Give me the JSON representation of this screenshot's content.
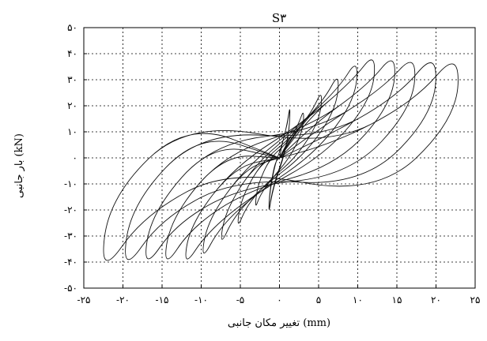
{
  "chart_data": {
    "type": "line",
    "title": "S۳",
    "xlabel": "تغییر مکان جانبی (mm)",
    "ylabel": "بار جانبی (kN)",
    "xlim": [
      -25,
      25
    ],
    "ylim": [
      -50,
      50
    ],
    "grid": true,
    "x_ticks": [
      -25,
      -20,
      -15,
      -10,
      -5,
      0,
      5,
      10,
      15,
      20,
      25
    ],
    "x_tick_labels": [
      "-۲۵",
      "-۲۰",
      "-۱۵",
      "-۱۰",
      "-۵",
      "۰",
      "۵",
      "۱۰",
      "۱۵",
      "۲۰",
      "۲۵"
    ],
    "y_ticks": [
      -50,
      -40,
      -30,
      -20,
      -10,
      0,
      10,
      20,
      30,
      40,
      50
    ],
    "y_tick_labels": [
      "-۵۰",
      "-۴۰",
      "-۳۰",
      "-۲۰",
      "-۱۰",
      "۰",
      "۱۰",
      "۲۰",
      "۳۰",
      "۴۰",
      "۵۰"
    ],
    "series": [
      {
        "x": [
          0.0,
          0.38,
          1.02,
          1.37,
          1.26,
          0.58,
          -0.34,
          -1.0,
          -1.39,
          -1.24,
          -0.55,
          0.28,
          0.98,
          1.37,
          1.28,
          0.62,
          -0.29,
          -0.99,
          -1.39,
          -1.26,
          -0.58,
          0.0
        ],
        "y": [
          0.0,
          6.0,
          13.1,
          20.3,
          10.6,
          0.7,
          -7.3,
          -14.4,
          -21.8,
          -13.1,
          -2.1,
          4.4,
          12.9,
          20.6,
          11.5,
          1.5,
          -6.2,
          -13.7,
          -21.6,
          -12.9,
          -1.7,
          0.0
        ]
      },
      {
        "x": [
          0.0,
          0.89,
          2.38,
          3.16,
          2.96,
          1.21,
          -0.98,
          -2.45,
          -3.16,
          -2.8,
          -1.15,
          0.89,
          2.38,
          3.16,
          2.96,
          1.22,
          -0.98,
          -2.45,
          -3.16,
          -2.8,
          -1.15,
          0.0
        ],
        "y": [
          0.0,
          5.4,
          12.5,
          19.1,
          9.9,
          -0.3,
          -8.0,
          -14.1,
          -20.0,
          -10.3,
          0.2,
          5.4,
          12.5,
          19.1,
          9.9,
          -0.3,
          -8.0,
          -14.1,
          -20.0,
          -10.3,
          0.2,
          0.0
        ]
      },
      {
        "x": [
          0.0,
          1.52,
          4.12,
          5.49,
          5.18,
          2.28,
          -1.53,
          -4.11,
          -5.49,
          -4.91,
          -2.2,
          1.52,
          4.12,
          5.49,
          5.18,
          2.28,
          -1.53,
          -4.11,
          -5.49,
          -4.91,
          -2.2,
          0.0
        ],
        "y": [
          0.0,
          8.0,
          17.5,
          26.6,
          14.7,
          0.7,
          -9.3,
          -18.0,
          -27.8,
          -15.6,
          -1.3,
          8.0,
          17.5,
          26.6,
          14.7,
          0.7,
          -9.3,
          -18.0,
          -27.8,
          -15.6,
          -1.3,
          0.0
        ]
      },
      {
        "x": [
          0.0,
          2.12,
          5.76,
          7.67,
          7.28,
          3.36,
          -2.12,
          -5.75,
          -7.67,
          -6.94,
          -3.22,
          2.12,
          5.76,
          7.67,
          7.28,
          3.36,
          -2.12,
          -5.75,
          -7.67,
          -6.94,
          -3.22,
          0.0
        ],
        "y": [
          0.0,
          10.8,
          22.6,
          33.3,
          18.8,
          1.6,
          -11.1,
          -22.1,
          -34.6,
          -20.5,
          -2.8,
          10.8,
          22.6,
          33.3,
          18.8,
          1.6,
          -11.1,
          -22.1,
          -34.6,
          -20.5,
          -2.8,
          0.0
        ]
      },
      {
        "x": [
          0.0,
          2.76,
          7.57,
          10.08,
          9.66,
          4.65,
          -2.77,
          -7.56,
          -10.08,
          -9.21,
          -4.44,
          2.76,
          7.57,
          10.08,
          9.66,
          4.65,
          -2.77,
          -7.56,
          -10.08,
          -9.21,
          -4.44,
          0.0
        ],
        "y": [
          0.0,
          13.2,
          26.8,
          38.7,
          21.9,
          2.0,
          -13.3,
          -26.3,
          -40.3,
          -24.1,
          -3.9,
          13.2,
          26.8,
          38.7,
          21.9,
          2.0,
          -13.3,
          -26.3,
          -40.3,
          -24.1,
          -3.9,
          0.0
        ]
      },
      {
        "x": [
          0.0,
          3.37,
          9.25,
          12.33,
          11.89,
          5.97,
          -3.37,
          -9.24,
          -12.33,
          -11.38,
          -5.71,
          3.37,
          9.25,
          12.33,
          11.89,
          5.97,
          -3.37,
          -9.24,
          -12.33,
          -11.38,
          -5.71,
          0.0
        ],
        "y": [
          0.0,
          14.3,
          29.4,
          41.2,
          22.9,
          1.5,
          -14.2,
          -28.6,
          -42.7,
          -25.3,
          -3.2,
          14.3,
          29.4,
          41.2,
          22.9,
          1.5,
          -14.2,
          -28.6,
          -42.7,
          -25.3,
          -3.2,
          0.0
        ]
      },
      {
        "x": [
          0.0,
          4.07,
          11.2,
          14.93,
          14.49,
          7.49,
          -4.07,
          -11.19,
          -14.93,
          -13.89,
          -7.17,
          4.07,
          11.2,
          14.93,
          14.49,
          7.49,
          -4.07,
          -11.19,
          -14.93,
          -13.89,
          -7.17,
          0.0
        ],
        "y": [
          0.0,
          12.3,
          27.7,
          41.3,
          21.1,
          -2.7,
          -12.5,
          -26.5,
          -43.4,
          -23.0,
          1.3,
          12.3,
          27.7,
          41.3,
          21.1,
          -2.7,
          -12.5,
          -26.5,
          -43.4,
          -23.0,
          1.3,
          0.0
        ]
      },
      {
        "x": [
          0.0,
          4.76,
          13.13,
          17.5,
          17.06,
          9.0,
          -4.76,
          -13.12,
          -17.5,
          -16.38,
          -8.62,
          4.76,
          13.13,
          17.5,
          17.06,
          9.0,
          -4.76,
          -13.12,
          -17.5,
          -16.38,
          -8.62,
          0.0
        ],
        "y": [
          0.0,
          10.6,
          26.5,
          41.0,
          19.2,
          -6.7,
          -11.0,
          -24.9,
          -44.0,
          -20.8,
          5.7,
          10.6,
          26.5,
          41.0,
          19.2,
          -6.7,
          -11.0,
          -24.9,
          -44.0,
          -20.8,
          5.7,
          0.0
        ]
      },
      {
        "x": [
          0.0,
          5.48,
          15.12,
          20.17,
          19.76,
          10.59,
          -5.48,
          -15.11,
          -20.17,
          -18.97,
          -10.14,
          5.48,
          15.12,
          20.17,
          19.76,
          10.59,
          -5.48,
          -15.11,
          -20.17,
          -18.97,
          -10.14,
          0.0
        ],
        "y": [
          0.0,
          7.3,
          23.6,
          41.8,
          16.6,
          -10.8,
          -7.9,
          -23.3,
          -45.1,
          -17.8,
          10.1,
          7.3,
          23.6,
          41.8,
          16.6,
          -10.8,
          -7.9,
          -23.3,
          -45.1,
          -17.8,
          10.1,
          0.0
        ]
      },
      {
        "x": [
          0.0,
          6.24,
          17.24,
          23.0,
          22.62,
          12.3,
          -6.24,
          -17.23,
          -23.0,
          -21.72,
          -11.78,
          6.24,
          17.24,
          23.0,
          22.62,
          12.3,
          -6.24,
          -17.23,
          -23.0,
          -21.72,
          -11.78,
          0.0
        ],
        "y": [
          0.0,
          4.4,
          21.6,
          41.9,
          14.7,
          -14.8,
          -4.1,
          -21.6,
          -46.3,
          -14.9,
          14.1,
          4.4,
          21.6,
          41.9,
          14.7,
          -14.8,
          -4.1,
          -21.6,
          -46.3,
          -14.9,
          14.1,
          0.0
        ]
      }
    ]
  }
}
